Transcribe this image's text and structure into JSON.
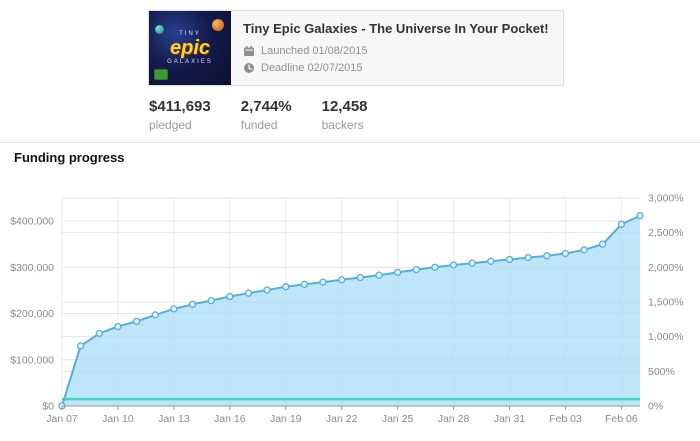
{
  "header": {
    "title": "Tiny Epic Galaxies - The Universe In Your Pocket!",
    "launched_label": "Launched 01/08/2015",
    "deadline_label": "Deadline 02/07/2015",
    "thumbnail": {
      "line1": "TINY",
      "line2": "epic",
      "line3": "GALAXIES"
    }
  },
  "stats": [
    {
      "value": "$411,693",
      "label": "pledged"
    },
    {
      "value": "2,744%",
      "label": "funded"
    },
    {
      "value": "12,458",
      "label": "backers"
    }
  ],
  "section_title": "Funding progress",
  "chart_data": {
    "type": "area",
    "title": "Funding progress",
    "x": [
      "Jan 07",
      "Jan 08",
      "Jan 09",
      "Jan 10",
      "Jan 11",
      "Jan 12",
      "Jan 13",
      "Jan 14",
      "Jan 15",
      "Jan 16",
      "Jan 17",
      "Jan 18",
      "Jan 19",
      "Jan 20",
      "Jan 21",
      "Jan 22",
      "Jan 23",
      "Jan 24",
      "Jan 25",
      "Jan 26",
      "Jan 27",
      "Jan 28",
      "Jan 29",
      "Jan 30",
      "Jan 31",
      "Feb 01",
      "Feb 02",
      "Feb 03",
      "Feb 04",
      "Feb 05",
      "Feb 06",
      "Feb 07"
    ],
    "values": [
      0,
      130000,
      157000,
      172000,
      183000,
      197000,
      210000,
      220000,
      228000,
      237000,
      244000,
      251000,
      258000,
      263000,
      268000,
      273000,
      278000,
      283000,
      289000,
      295000,
      300000,
      305000,
      309000,
      313000,
      317000,
      321000,
      325000,
      330000,
      338000,
      350000,
      393000,
      411693
    ],
    "x_ticks": [
      {
        "index": 0,
        "label": "Jan 07"
      },
      {
        "index": 3,
        "label": "Jan 10"
      },
      {
        "index": 6,
        "label": "Jan 13"
      },
      {
        "index": 9,
        "label": "Jan 16"
      },
      {
        "index": 12,
        "label": "Jan 19"
      },
      {
        "index": 15,
        "label": "Jan 22"
      },
      {
        "index": 18,
        "label": "Jan 25"
      },
      {
        "index": 21,
        "label": "Jan 28"
      },
      {
        "index": 24,
        "label": "Jan 31"
      },
      {
        "index": 27,
        "label": "Feb 03"
      },
      {
        "index": 30,
        "label": "Feb 06"
      }
    ],
    "y_left_ticks": [
      {
        "value": 0,
        "label": "$0"
      },
      {
        "value": 100000,
        "label": "$100,000"
      },
      {
        "value": 200000,
        "label": "$200,000"
      },
      {
        "value": 300000,
        "label": "$300,000"
      },
      {
        "value": 400000,
        "label": "$400,000"
      }
    ],
    "y_right_ticks": [
      {
        "value": 0,
        "label": "0%"
      },
      {
        "value": 75000,
        "label": "500%"
      },
      {
        "value": 150000,
        "label": "1,000%"
      },
      {
        "value": 225000,
        "label": "1,500%"
      },
      {
        "value": 300000,
        "label": "2,000%"
      },
      {
        "value": 375000,
        "label": "2,500%"
      },
      {
        "value": 450000,
        "label": "3,000%"
      }
    ],
    "y_max": 450000,
    "goal_value": 15000,
    "grid": true,
    "legend": false,
    "colors": {
      "line": "#54aede",
      "fill": "#a8dcf5",
      "marker_fill": "#e4f4fd",
      "goal": "#3fd4c0",
      "grid": "#e4e4e4",
      "grid_v": "#ededed",
      "axis": "#999999",
      "tick_label": "#8a8a8a"
    }
  }
}
